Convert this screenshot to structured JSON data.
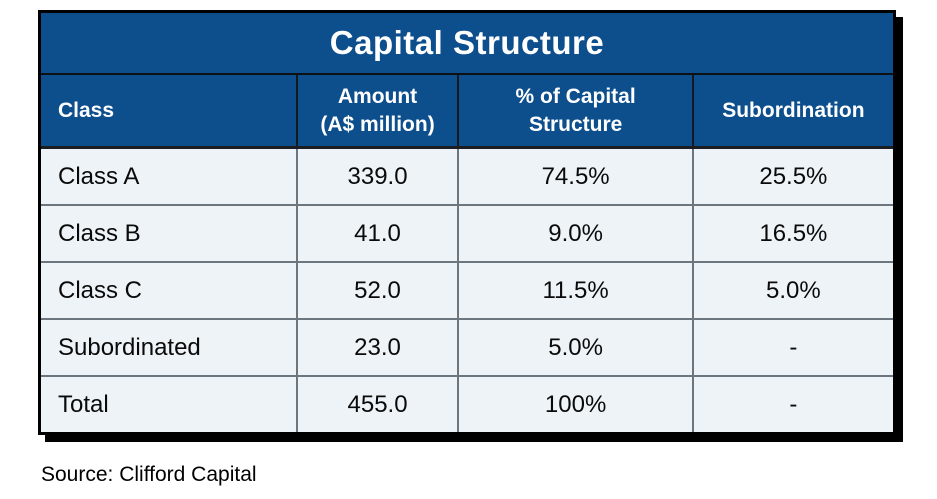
{
  "table": {
    "title": "Capital Structure",
    "columns": [
      {
        "line1": "Class",
        "line2": ""
      },
      {
        "line1": "Amount",
        "line2": "(A$ million)"
      },
      {
        "line1": "% of Capital",
        "line2": "Structure"
      },
      {
        "line1": "Subordination",
        "line2": ""
      }
    ],
    "rows": [
      {
        "class": "Class A",
        "amount": "339.0",
        "pct": "74.5%",
        "sub": "25.5%"
      },
      {
        "class": "Class B",
        "amount": "41.0",
        "pct": "9.0%",
        "sub": "16.5%"
      },
      {
        "class": "Class C",
        "amount": "52.0",
        "pct": "11.5%",
        "sub": "5.0%"
      },
      {
        "class": "Subordinated",
        "amount": "23.0",
        "pct": "5.0%",
        "sub": "-"
      },
      {
        "class": "Total",
        "amount": "455.0",
        "pct": "100%",
        "sub": "-"
      }
    ]
  },
  "source_note": "Source: Clifford Capital",
  "colors": {
    "header_blue": "#0d4e8c",
    "body_row_bg": "#edf3f7",
    "grid_gray": "#6b767e",
    "outer_border": "#000000",
    "header_text": "#ffffff",
    "body_text": "#0a0a0a"
  },
  "chart_data": {
    "type": "table",
    "title": "Capital Structure",
    "columns": [
      "Class",
      "Amount (A$ million)",
      "% of Capital Structure",
      "Subordination"
    ],
    "rows": [
      [
        "Class A",
        339.0,
        "74.5%",
        "25.5%"
      ],
      [
        "Class B",
        41.0,
        "9.0%",
        "16.5%"
      ],
      [
        "Class C",
        52.0,
        "11.5%",
        "5.0%"
      ],
      [
        "Subordinated",
        23.0,
        "5.0%",
        "-"
      ],
      [
        "Total",
        455.0,
        "100%",
        "-"
      ]
    ],
    "source": "Source: Clifford Capital"
  }
}
